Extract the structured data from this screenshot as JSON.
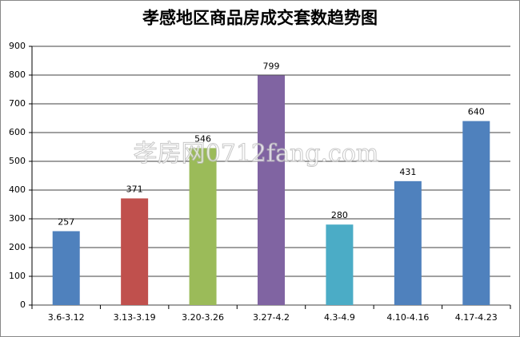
{
  "chart_data": {
    "type": "bar",
    "title": "孝感地区商品房成交套数趋势图",
    "watermark": "孝房网0712fang.com",
    "categories": [
      "3.6-3.12",
      "3.13-3.19",
      "3.20-3.26",
      "3.27-4.2",
      "4.3-4.9",
      "4.10-4.16",
      "4.17-4.23"
    ],
    "values": [
      257,
      371,
      546,
      799,
      280,
      431,
      640
    ],
    "colors": [
      "#4f81bd",
      "#c0504d",
      "#9bbb59",
      "#8064a2",
      "#4bacc6",
      "#4f81bd",
      "#4f81bd"
    ],
    "ylim": [
      0,
      900
    ],
    "yticks": [
      0,
      100,
      200,
      300,
      400,
      500,
      600,
      700,
      800,
      900
    ],
    "grid": true
  }
}
